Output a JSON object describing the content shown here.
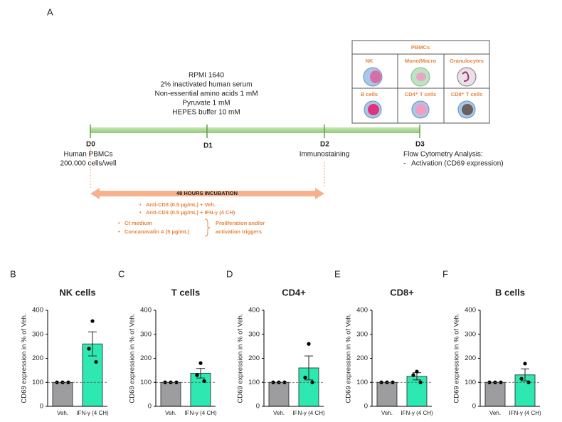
{
  "diagram": {
    "panel_label": "A",
    "media": [
      "RPMI 1640",
      "2% inactivated human serum",
      "Non-essential amino acids 1 mM",
      "Pyruvate 1 mM",
      "HEPES buffer 10 mM"
    ],
    "days": [
      {
        "label": "D0",
        "notes": [
          "Human PBMCs",
          "200.000 cells/well"
        ]
      },
      {
        "label": "D1",
        "notes": []
      },
      {
        "label": "D2",
        "notes": [
          "Immunostaining"
        ]
      },
      {
        "label": "D3",
        "notes": [
          "Flow Cytometry Analysis:",
          "-   Activation (CD69 expression)"
        ]
      }
    ],
    "pbmcs": {
      "title": "PBMCs",
      "cells": [
        "NK",
        "Mono/Macro",
        "Granulocytes",
        "B cells",
        "CD4⁺ T cells",
        "CD8⁺ T cells"
      ]
    },
    "incubation": {
      "title": "48 HOURS INCUBATION",
      "treatments": [
        "Anti-CD3 (0.5 µg/mL) + Veh.",
        "Anti-CD3 (0.5 µg/mL) + IFN-γ (4 CH)"
      ],
      "controls": [
        "Ct medium",
        "Concanavalin A (5 µg/mL)"
      ],
      "brace_note": [
        "Proliferation and/or",
        "activation triggers"
      ]
    }
  },
  "chart_data": [
    {
      "type": "bar",
      "panel": "B",
      "title": "NK cells",
      "ylabel": "CD69 expression in % of Veh.",
      "categories": [
        "Veh.",
        "IFN-γ (4 CH)"
      ],
      "values": [
        100,
        260
      ],
      "errors": [
        null,
        50
      ],
      "points": [
        [
          100,
          100,
          100
        ],
        [
          355,
          240,
          185
        ]
      ],
      "colors": [
        "#9d9da0",
        "#2ee8b2"
      ],
      "reference_line": 100,
      "ylim": [
        0,
        400
      ],
      "yticks": [
        0,
        100,
        200,
        300,
        400
      ]
    },
    {
      "type": "bar",
      "panel": "C",
      "title": "T cells",
      "ylabel": "CD69 expression in % of Veh.",
      "categories": [
        "Veh.",
        "IFN-γ (4 CH)"
      ],
      "values": [
        100,
        138
      ],
      "errors": [
        null,
        20
      ],
      "points": [
        [
          100,
          100,
          100
        ],
        [
          180,
          130,
          105
        ]
      ],
      "colors": [
        "#9d9da0",
        "#2ee8b2"
      ],
      "reference_line": 100,
      "ylim": [
        0,
        400
      ],
      "yticks": [
        0,
        100,
        200,
        300,
        400
      ]
    },
    {
      "type": "bar",
      "panel": "D",
      "title": "CD4+",
      "ylabel": "CD69 expression in % of Veh.",
      "categories": [
        "Veh.",
        "IFN-γ (4 CH)"
      ],
      "values": [
        100,
        160
      ],
      "errors": [
        null,
        50
      ],
      "points": [
        [
          100,
          100,
          100
        ],
        [
          260,
          120,
          100
        ]
      ],
      "colors": [
        "#9d9da0",
        "#2ee8b2"
      ],
      "reference_line": 100,
      "ylim": [
        0,
        400
      ],
      "yticks": [
        0,
        100,
        200,
        300,
        400
      ]
    },
    {
      "type": "bar",
      "panel": "E",
      "title": "CD8+",
      "ylabel": "CD69 expression in % of Veh.",
      "categories": [
        "Veh.",
        "IFN-γ (4 CH)"
      ],
      "values": [
        100,
        125
      ],
      "errors": [
        null,
        15
      ],
      "points": [
        [
          100,
          100,
          100
        ],
        [
          145,
          130,
          100
        ]
      ],
      "colors": [
        "#9d9da0",
        "#2ee8b2"
      ],
      "reference_line": 100,
      "ylim": [
        0,
        400
      ],
      "yticks": [
        0,
        100,
        200,
        300,
        400
      ]
    },
    {
      "type": "bar",
      "panel": "F",
      "title": "B cells",
      "ylabel": "CD69 expression in % of Veh.",
      "categories": [
        "Veh.",
        "IFN-γ (4 CH)"
      ],
      "values": [
        100,
        131
      ],
      "errors": [
        null,
        25
      ],
      "points": [
        [
          100,
          100,
          100
        ],
        [
          178,
          115,
          100
        ]
      ],
      "colors": [
        "#9d9da0",
        "#2ee8b2"
      ],
      "reference_line": 100,
      "ylim": [
        0,
        400
      ],
      "yticks": [
        0,
        100,
        200,
        300,
        400
      ]
    }
  ]
}
